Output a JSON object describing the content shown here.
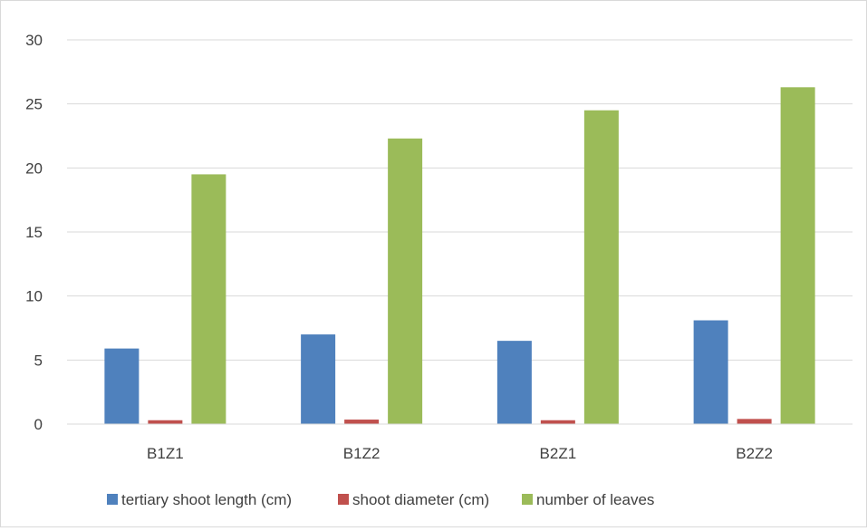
{
  "chart_data": {
    "type": "bar",
    "title": "",
    "xlabel": "",
    "ylabel": "",
    "categories": [
      "B1Z1",
      "B1Z2",
      "B2Z1",
      "B2Z2"
    ],
    "ylim": [
      0,
      30
    ],
    "yticks": [
      0,
      5,
      10,
      15,
      20,
      25,
      30
    ],
    "grid": true,
    "legend_position": "bottom",
    "series": [
      {
        "name": "tertiary shoot length (cm)",
        "color": "#4f81bd",
        "values": [
          5.9,
          7.0,
          6.5,
          8.1
        ]
      },
      {
        "name": "shoot diameter (cm)",
        "color": "#c0504d",
        "values": [
          0.3,
          0.35,
          0.3,
          0.4
        ]
      },
      {
        "name": "number of leaves",
        "color": "#9bbb59",
        "values": [
          19.5,
          22.3,
          24.5,
          26.3
        ]
      }
    ]
  }
}
